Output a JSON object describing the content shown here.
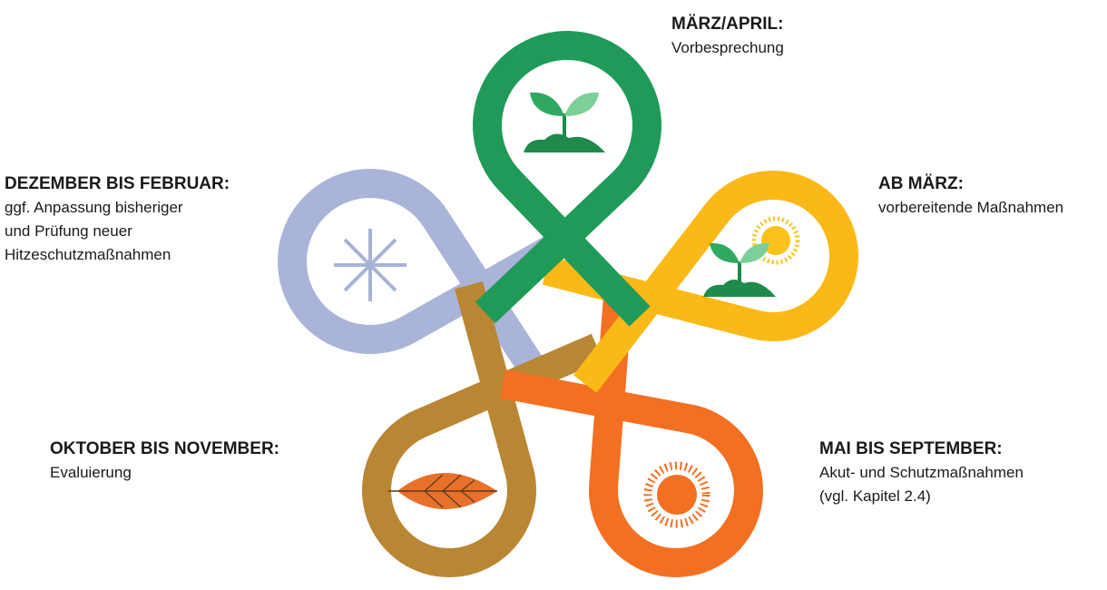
{
  "phases": [
    {
      "title": "MÄRZ/APRIL:",
      "lines": [
        "Vorbesprechung"
      ]
    },
    {
      "title": "AB MÄRZ:",
      "lines": [
        "vorbereitende Maßnahmen"
      ]
    },
    {
      "title": "MAI BIS SEPTEMBER:",
      "lines": [
        "Akut- und Schutzmaßnahmen",
        "(vgl. Kapitel 2.4)"
      ]
    },
    {
      "title": "OKTOBER BIS NOVEMBER:",
      "lines": [
        "Evaluierung"
      ]
    },
    {
      "title": "DEZEMBER BIS FEBRUAR:",
      "lines": [
        "ggf. Anpassung bisheriger",
        "und Prüfung neuer",
        "Hitzeschutzmaßnahmen"
      ]
    }
  ]
}
